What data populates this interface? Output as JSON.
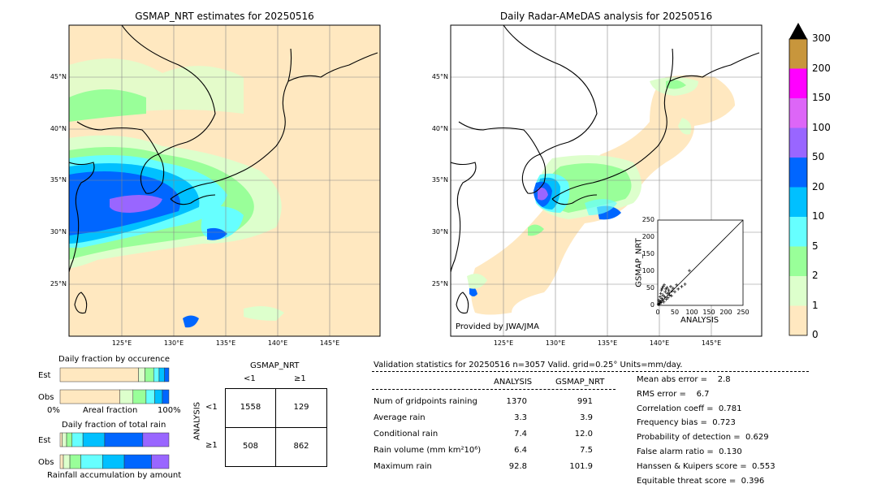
{
  "maps": {
    "left_title": "GSMAP_NRT estimates for 20250516",
    "right_title": "Daily Radar-AMeDAS analysis for 20250516",
    "lat_labels": [
      "45°N",
      "40°N",
      "35°N",
      "30°N",
      "25°N"
    ],
    "lon_labels": [
      "125°E",
      "130°E",
      "135°E",
      "140°E",
      "145°E"
    ],
    "credit": "Provided by JWA/JMA"
  },
  "colorbar": {
    "ticks": [
      "300",
      "200",
      "150",
      "100",
      "50",
      "20",
      "10",
      "5",
      "2",
      "1",
      "0"
    ],
    "colors": [
      "#c8963c",
      "#ff00ff",
      "#dd66f7",
      "#9966ff",
      "#0066ff",
      "#00c0ff",
      "#66ffff",
      "#99ff99",
      "#ddffcc",
      "#ffe8c0"
    ]
  },
  "inset": {
    "xlabel": "ANALYSIS",
    "ylabel": "GSMAP_NRT",
    "ticks": [
      "0",
      "50",
      "100",
      "150",
      "200",
      "250"
    ]
  },
  "occurrence": {
    "title": "Daily fraction by occurence",
    "row_est": "Est",
    "row_obs": "Obs",
    "axis_left": "0%",
    "axis_mid": "Areal fraction",
    "axis_right": "100%"
  },
  "total_rain": {
    "title": "Daily fraction of total rain",
    "row_est": "Est",
    "row_obs": "Obs",
    "axis_label": "Rainfall accumulation by amount"
  },
  "contingency": {
    "col_header": "GSMAP_NRT",
    "col_lt": "<1",
    "col_ge": "≥1",
    "row_header": "ANALYSIS",
    "row_lt": "<1",
    "row_ge": "≥1",
    "cells": [
      [
        "1558",
        "129"
      ],
      [
        "508",
        "862"
      ]
    ]
  },
  "validation": {
    "header": "Validation statistics for 20250516  n=3057 Valid. grid=0.25° Units=mm/day.",
    "col_analysis": "ANALYSIS",
    "col_gsmap": "GSMAP_NRT",
    "rows": [
      {
        "label": "Num of gridpoints raining",
        "analysis": "1370",
        "gsmap": "991"
      },
      {
        "label": "Average rain",
        "analysis": "3.3",
        "gsmap": "3.9"
      },
      {
        "label": "Conditional rain",
        "analysis": "7.4",
        "gsmap": "12.0"
      },
      {
        "label": "Rain volume (mm km²10⁶)",
        "analysis": "6.4",
        "gsmap": "7.5"
      },
      {
        "label": "Maximum rain",
        "analysis": "92.8",
        "gsmap": "101.9"
      }
    ],
    "scores": [
      "Mean abs error =    2.8",
      "RMS error =    6.7",
      "Correlation coeff =  0.781",
      "Frequency bias =  0.723",
      "Probability of detection =  0.629",
      "False alarm ratio =  0.130",
      "Hanssen & Kuipers score =  0.553",
      "Equitable threat score =  0.396"
    ]
  },
  "chart_data": [
    {
      "type": "heatmap",
      "title": "GSMAP_NRT estimates for 20250516",
      "xlim": [
        120,
        150
      ],
      "ylim": [
        20,
        50
      ],
      "x_ticks": [
        125,
        130,
        135,
        140,
        145
      ],
      "y_ticks": [
        25,
        30,
        35,
        40,
        45
      ]
    },
    {
      "type": "heatmap",
      "title": "Daily Radar-AMeDAS analysis for 20250516",
      "xlim": [
        120,
        150
      ],
      "ylim": [
        20,
        50
      ],
      "x_ticks": [
        125,
        130,
        135,
        140,
        145
      ],
      "y_ticks": [
        25,
        30,
        35,
        40,
        45
      ]
    },
    {
      "type": "scatter",
      "xlabel": "ANALYSIS",
      "ylabel": "GSMAP_NRT",
      "xlim": [
        0,
        250
      ],
      "ylim": [
        0,
        250
      ],
      "x": [
        2,
        4,
        5,
        6,
        8,
        10,
        12,
        14,
        15,
        18,
        20,
        22,
        25,
        28,
        30,
        32,
        35,
        40,
        45,
        50,
        3,
        7,
        9,
        11,
        13,
        16,
        19,
        24,
        27,
        33,
        38,
        42,
        55,
        60,
        70,
        80,
        92.8
      ],
      "y": [
        3,
        6,
        10,
        4,
        12,
        8,
        20,
        15,
        30,
        10,
        25,
        40,
        18,
        35,
        22,
        45,
        30,
        28,
        50,
        40,
        15,
        25,
        35,
        45,
        50,
        55,
        60,
        48,
        52,
        38,
        55,
        42,
        60,
        48,
        55,
        62,
        101.9
      ]
    },
    {
      "type": "bar",
      "title": "Daily fraction by occurence",
      "categories": [
        "Est",
        "Obs"
      ],
      "series": [
        {
          "values": [
            0.72,
            0.55
          ]
        },
        {
          "values": [
            0.06,
            0.12
          ]
        },
        {
          "values": [
            0.08,
            0.12
          ]
        },
        {
          "values": [
            0.05,
            0.08
          ]
        },
        {
          "values": [
            0.05,
            0.07
          ]
        },
        {
          "values": [
            0.04,
            0.06
          ]
        }
      ]
    },
    {
      "type": "bar",
      "title": "Daily fraction of total rain",
      "categories": [
        "Est",
        "Obs"
      ],
      "series": [
        {
          "values": [
            0.02,
            0.03
          ]
        },
        {
          "values": [
            0.04,
            0.06
          ]
        },
        {
          "values": [
            0.05,
            0.1
          ]
        },
        {
          "values": [
            0.1,
            0.2
          ]
        },
        {
          "values": [
            0.2,
            0.2
          ]
        },
        {
          "values": [
            0.35,
            0.25
          ]
        },
        {
          "values": [
            0.24,
            0.16
          ]
        }
      ]
    }
  ]
}
